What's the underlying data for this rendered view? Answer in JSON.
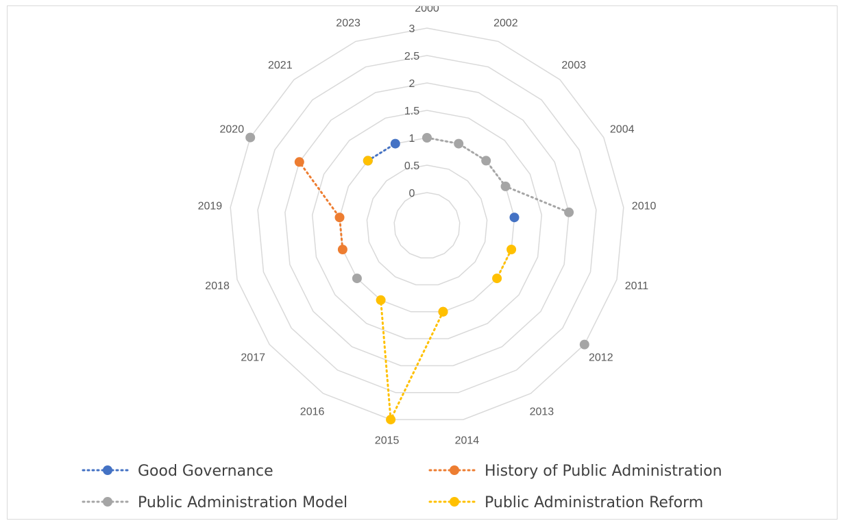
{
  "chart_data": {
    "type": "radar",
    "categories": [
      "2000",
      "2002",
      "2003",
      "2004",
      "2010",
      "2011",
      "2012",
      "2013",
      "2014",
      "2015",
      "2016",
      "2017",
      "2018",
      "2019",
      "2020",
      "2021",
      "2023"
    ],
    "rmin": 0,
    "rmax": 3,
    "ticks": [
      0,
      0.5,
      1,
      1.5,
      2,
      2.5,
      3
    ],
    "tick_labels": [
      "0",
      "0.5",
      "1",
      "1.5",
      "2",
      "2.5",
      "3"
    ],
    "series": [
      {
        "name": "Good Governance",
        "color": "#4472C4",
        "values": [
          null,
          null,
          null,
          null,
          1,
          null,
          null,
          null,
          null,
          null,
          null,
          null,
          null,
          null,
          null,
          1,
          1
        ]
      },
      {
        "name": "History of Public Administration",
        "color": "#ED7D31",
        "values": [
          null,
          null,
          null,
          null,
          null,
          null,
          null,
          null,
          1,
          null,
          null,
          null,
          1,
          1,
          2,
          null,
          null
        ]
      },
      {
        "name": "Public Administration Model",
        "color": "#A5A5A5",
        "values": [
          1,
          1,
          1,
          1,
          2,
          null,
          3,
          null,
          null,
          null,
          null,
          1,
          null,
          null,
          3,
          null,
          null
        ]
      },
      {
        "name": "Public Administration Reform",
        "color": "#FFC000",
        "values": [
          null,
          null,
          null,
          null,
          null,
          1,
          1,
          null,
          1,
          3,
          1,
          null,
          null,
          null,
          null,
          1,
          null
        ]
      }
    ],
    "legend_position": "bottom"
  }
}
